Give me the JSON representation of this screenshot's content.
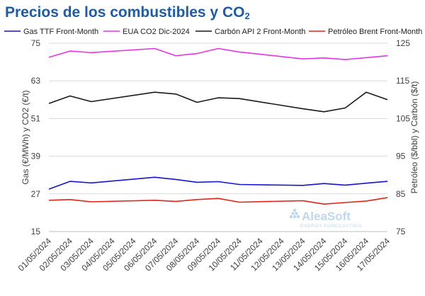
{
  "title": {
    "text": "Precios de los combustibles y CO",
    "subscript": "2"
  },
  "watermark": {
    "brand": "AleaSoft",
    "tagline": "ENERGY FORECASTING"
  },
  "colors": {
    "title": "#1f5ca8",
    "grid": "#d9d9d9",
    "axis_text": "#404040",
    "watermark": "#bfd7ee"
  },
  "chart_data": {
    "type": "line",
    "title": "Precios de los combustibles y CO2",
    "ylabel_left": "Gas (€/MWh) y CO2 (€/t)",
    "ylabel_right": "Petróleo ($/bbl) y Carbón ($/t)",
    "ylim_left": [
      15,
      75
    ],
    "yticks_left": [
      "15",
      "27",
      "39",
      "51",
      "63",
      "75"
    ],
    "ylim_right": [
      75,
      125
    ],
    "yticks_right": [
      "75",
      "85",
      "95",
      "105",
      "115",
      "125"
    ],
    "grid": true,
    "legend_position": "top",
    "x": [
      "01/05/2024",
      "02/05/2024",
      "03/05/2024",
      "06/05/2024",
      "07/05/2024",
      "08/05/2024",
      "09/05/2024",
      "10/05/2024",
      "13/05/2024",
      "14/05/2024",
      "15/05/2024",
      "16/05/2024",
      "17/05/2024"
    ],
    "xticks": [
      "01/05/2024",
      "02/05/2024",
      "03/05/2024",
      "04/05/2024",
      "05/05/2024",
      "06/05/2024",
      "07/05/2024",
      "08/05/2024",
      "09/05/2024",
      "10/05/2024",
      "11/05/2024",
      "12/05/2024",
      "13/05/2024",
      "14/05/2024",
      "15/05/2024",
      "16/05/2024",
      "17/05/2024"
    ],
    "x_index": [
      0,
      1,
      2,
      5,
      6,
      7,
      8,
      9,
      12,
      13,
      14,
      15,
      16
    ],
    "series": [
      {
        "name": "Gas TTF Front-Month",
        "color": "#1414d2",
        "axis": "left",
        "values": [
          28.5,
          31.0,
          30.5,
          32.3,
          31.6,
          30.7,
          30.9,
          30.0,
          29.7,
          30.3,
          29.8,
          30.4,
          31.0
        ]
      },
      {
        "name": "EUA CO2 Dic-2024",
        "color": "#e633e6",
        "axis": "left",
        "values": [
          70.5,
          72.5,
          72.0,
          73.3,
          71.0,
          71.7,
          73.3,
          72.2,
          70.0,
          70.3,
          69.8,
          70.4,
          71.0
        ]
      },
      {
        "name": "Carbón API 2 Front-Month",
        "color": "#1a1a1a",
        "axis": "right",
        "values": [
          109.0,
          111.0,
          109.5,
          112.0,
          111.5,
          109.3,
          110.5,
          110.3,
          107.6,
          106.8,
          107.8,
          112.0,
          110.0
        ]
      },
      {
        "name": "Petróleo Brent Front-Month",
        "color": "#e3241b",
        "axis": "right",
        "values": [
          83.3,
          83.5,
          82.9,
          83.3,
          83.0,
          83.5,
          83.8,
          82.8,
          83.2,
          82.3,
          82.7,
          83.1,
          84.0
        ]
      }
    ]
  }
}
